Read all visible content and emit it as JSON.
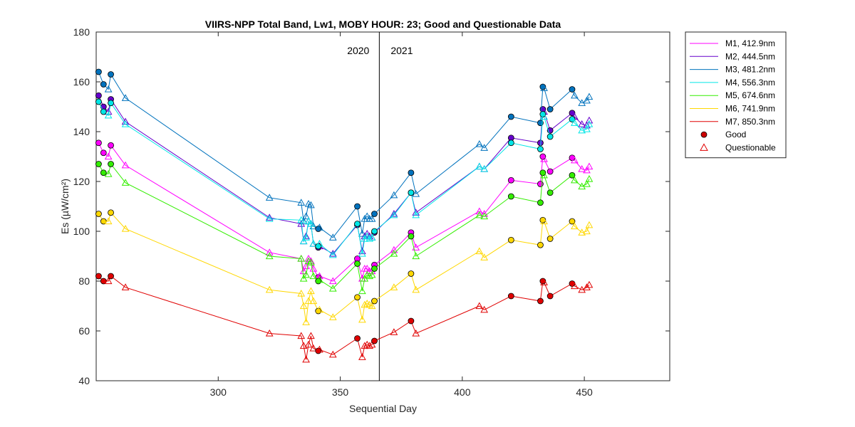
{
  "chart_data": {
    "type": "line",
    "title": "VIIRS-NPP Total Band,  Lw1, MOBY HOUR: 23;  Good and Questionable Data",
    "xlabel": "Sequential Day",
    "ylabel": "Es (µW/cm²)",
    "xlim": [
      250,
      485
    ],
    "ylim": [
      40,
      180
    ],
    "xticks": [
      300,
      350,
      400,
      450
    ],
    "yticks": [
      40,
      60,
      80,
      100,
      120,
      140,
      160,
      180
    ],
    "grid": false,
    "legend_position": "outside-top-right",
    "divider": {
      "x": 366,
      "left_label": "2020",
      "right_label": "2021"
    },
    "legend_entries": [
      {
        "label": "Good",
        "marker": "circle",
        "color": "#cc0000"
      },
      {
        "label": "Questionable",
        "marker": "triangle",
        "color": "#e00000"
      }
    ],
    "x": [
      251,
      253,
      255,
      256,
      262,
      321,
      334,
      335,
      336,
      337,
      338,
      339,
      341,
      341.5,
      347,
      357,
      359,
      360,
      361,
      362,
      363,
      364,
      372,
      379,
      381,
      407,
      409,
      420,
      432,
      433,
      433.5,
      436,
      445,
      446,
      449,
      451,
      452
    ],
    "good_x": [
      251,
      253,
      256,
      341,
      357,
      364,
      379,
      420,
      432,
      433,
      436,
      445
    ],
    "series": [
      {
        "name": "M1, 412.9nm",
        "color": "#ff00ff",
        "values": [
          135.5,
          131.5,
          130,
          134.5,
          126.5,
          91.5,
          89,
          84,
          86,
          89,
          88,
          85,
          81.5,
          82,
          80,
          89,
          81,
          85,
          85,
          84,
          84,
          86.5,
          92.5,
          99.5,
          93.5,
          108,
          107,
          120.5,
          119,
          130,
          129,
          124,
          129.5,
          128.5,
          125,
          124.5,
          126
        ]
      },
      {
        "name": "M2, 444.5nm",
        "color": "#6600cc",
        "values": [
          154.5,
          150,
          148,
          153,
          144,
          105.5,
          103,
          96,
          98,
          104,
          103,
          95,
          93.5,
          94,
          91,
          102.5,
          92,
          98,
          99,
          98,
          97.5,
          99.5,
          107,
          115.5,
          107.5,
          126,
          125,
          137.5,
          135.5,
          149,
          148,
          140.5,
          147.5,
          146,
          143,
          142.5,
          144.5
        ]
      },
      {
        "name": "M3, 481.2nm",
        "color": "#0072bd",
        "values": [
          164,
          159,
          157,
          163,
          153.5,
          113.5,
          111.5,
          104,
          106,
          111,
          110.5,
          102,
          101,
          101.5,
          97.5,
          110,
          99,
          105,
          106,
          105,
          105,
          107,
          114.5,
          123.5,
          115,
          135,
          133.5,
          146,
          143.5,
          158,
          157.5,
          149,
          157,
          154.5,
          151.5,
          152.5,
          154
        ]
      },
      {
        "name": "M4, 556.3nm",
        "color": "#00e6e6",
        "values": [
          152,
          148,
          146.5,
          151.5,
          143,
          105,
          104.5,
          96,
          97.5,
          104,
          103,
          95,
          94,
          95,
          90.5,
          103,
          91,
          97,
          98,
          97,
          97.5,
          100,
          106.5,
          115.5,
          106.5,
          126,
          125,
          135.5,
          133,
          147,
          146,
          138,
          145,
          143.5,
          140.5,
          141,
          143
        ]
      },
      {
        "name": "M5, 674.6nm",
        "color": "#33ee00",
        "values": [
          127,
          123.5,
          123,
          127,
          119.5,
          90,
          89,
          81,
          82.5,
          88,
          87.5,
          82,
          80,
          80.5,
          77,
          87,
          76,
          81,
          82.5,
          82,
          82.5,
          85,
          91,
          98,
          90,
          106.5,
          106,
          114,
          111.5,
          123.5,
          122.5,
          115.5,
          122.5,
          120.5,
          118,
          119,
          121
        ]
      },
      {
        "name": "M6, 741.9nm",
        "color": "#ffd700",
        "values": [
          107,
          104,
          104,
          107.5,
          101,
          76.5,
          75,
          70,
          63.5,
          72,
          76,
          72,
          68,
          68.5,
          65.5,
          73.5,
          64.5,
          70.5,
          71,
          70.5,
          70,
          72,
          77.5,
          83,
          76.5,
          92,
          89.5,
          96.5,
          94.5,
          104.5,
          104,
          97,
          104,
          102,
          99.5,
          100,
          102.5
        ]
      },
      {
        "name": "M7, 850.3nm",
        "color": "#e00000",
        "values": [
          82,
          80,
          80,
          82,
          77.5,
          59,
          58,
          54,
          48.5,
          54.5,
          58,
          53,
          52,
          52.5,
          50.5,
          57,
          49.5,
          54,
          54.5,
          54,
          54.5,
          56,
          59.5,
          64,
          59,
          70,
          68.5,
          74,
          72,
          80,
          79.5,
          74,
          79,
          78,
          76.5,
          77.5,
          78.5
        ]
      }
    ]
  }
}
